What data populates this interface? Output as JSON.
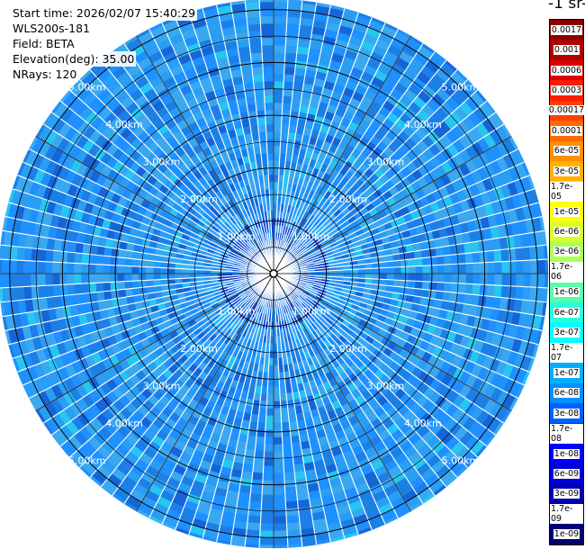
{
  "info": {
    "start_time": "Start time: 2026/02/07 15:40:29",
    "instrument": "WLS200s-181",
    "field": "Field: BETA",
    "elevation": "Elevation(deg): 35.00",
    "nrays": "NRays: 120"
  },
  "colorbar": {
    "title": "-1 sr-",
    "labels": [
      "0.0017",
      "0.001",
      "0.0006",
      "0.0003",
      "0.00017",
      "0.0001",
      "6e-05",
      "3e-05",
      "1.7e-05",
      "1e-05",
      "6e-06",
      "3e-06",
      "1.7e-06",
      "1e-06",
      "6e-07",
      "3e-07",
      "1.7e-07",
      "1e-07",
      "6e-08",
      "3e-08",
      "1.7e-08",
      "1e-08",
      "6e-09",
      "3e-09",
      "1.7e-09",
      "1e-09"
    ],
    "colors": [
      "#8b0000",
      "#b00000",
      "#d80000",
      "#ff1a00",
      "#ff4000",
      "#ff6a00",
      "#ff9000",
      "#ffb000",
      "#ffd800",
      "#ffff00",
      "#d8ff28",
      "#aaff55",
      "#80ff80",
      "#55ffaa",
      "#28ffd8",
      "#00ffff",
      "#00d8ff",
      "#00b0ff",
      "#0090ff",
      "#0060ff",
      "#0030ff",
      "#0000ff",
      "#0000d8",
      "#0000b0",
      "#000090",
      "#000070"
    ]
  },
  "chart_data": {
    "type": "heatmap",
    "subtype": "polar-ppi",
    "title": "",
    "field": "BETA",
    "elevation_deg": 35.0,
    "nrays": 120,
    "range_rings_km": [
      1,
      2,
      3,
      4,
      5
    ],
    "ring_labels": [
      "1.00km",
      "2.00km",
      "3.00km",
      "4.00km",
      "5.00km"
    ],
    "max_range_km": 5.2,
    "value_range": [
      1e-09,
      0.0017
    ],
    "dominant_value": "≈3e-08 to 1e-07 (light-to-medium blue) across the whole scan",
    "features": "stronger backscatter (≈1e-08 dark-blue patches) concentrated near centre and along north-northeast; range gates separated by white gaps"
  }
}
